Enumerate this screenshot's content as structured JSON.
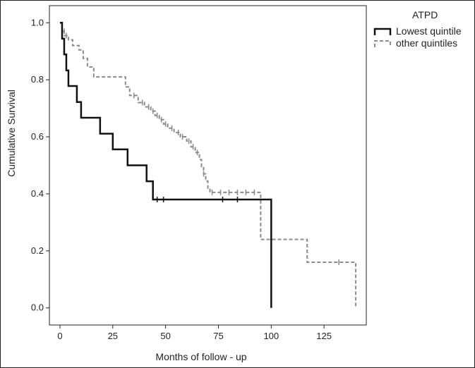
{
  "chart_data": {
    "type": "line",
    "subtype": "kaplan-meier step plot",
    "xlabel": "Months of follow - up",
    "ylabel": "Cumulative Survival",
    "xlim": [
      -5,
      145
    ],
    "ylim": [
      -0.06,
      1.06
    ],
    "x_ticks": [
      0,
      25,
      50,
      75,
      100,
      125
    ],
    "y_ticks": [
      0.0,
      0.2,
      0.4,
      0.6,
      0.8,
      1.0
    ],
    "y_tick_labels": [
      "0.0",
      "0.2",
      "0.4",
      "0.6",
      "0.8",
      "1.0"
    ],
    "grid": false,
    "legend": {
      "title": "ATPD",
      "position": "outside-top-right",
      "entries": [
        "Lowest quintile",
        "other quintiles"
      ]
    },
    "series": [
      {
        "name": "Lowest quintile",
        "color": "#111111",
        "style": "solid",
        "steps": [
          [
            0,
            1.0
          ],
          [
            1,
            0.944
          ],
          [
            2,
            0.889
          ],
          [
            3,
            0.833
          ],
          [
            4,
            0.778
          ],
          [
            8,
            0.722
          ],
          [
            10,
            0.667
          ],
          [
            19,
            0.611
          ],
          [
            25,
            0.556
          ],
          [
            32,
            0.5
          ],
          [
            41,
            0.444
          ],
          [
            44,
            0.38
          ],
          [
            100,
            0.0
          ]
        ],
        "end_x": 100,
        "censored": [
          [
            46,
            0.38
          ],
          [
            49,
            0.38
          ],
          [
            77,
            0.38
          ],
          [
            84,
            0.38
          ]
        ]
      },
      {
        "name": "other quintiles",
        "color": "#8a8a8a",
        "style": "dashed",
        "steps": [
          [
            0,
            1.0
          ],
          [
            1,
            0.97
          ],
          [
            2,
            0.955
          ],
          [
            4,
            0.94
          ],
          [
            6,
            0.92
          ],
          [
            9,
            0.905
          ],
          [
            11,
            0.875
          ],
          [
            13,
            0.845
          ],
          [
            16,
            0.81
          ],
          [
            31,
            0.775
          ],
          [
            33,
            0.745
          ],
          [
            37,
            0.72
          ],
          [
            40,
            0.705
          ],
          [
            43,
            0.69
          ],
          [
            45,
            0.675
          ],
          [
            47,
            0.66
          ],
          [
            49,
            0.645
          ],
          [
            51,
            0.63
          ],
          [
            54,
            0.615
          ],
          [
            57,
            0.6
          ],
          [
            60,
            0.585
          ],
          [
            62,
            0.565
          ],
          [
            64,
            0.545
          ],
          [
            66,
            0.52
          ],
          [
            67,
            0.495
          ],
          [
            68,
            0.47
          ],
          [
            69,
            0.445
          ],
          [
            70,
            0.42
          ],
          [
            71,
            0.405
          ],
          [
            95,
            0.24
          ],
          [
            117,
            0.16
          ],
          [
            140,
            0.0
          ]
        ],
        "end_x": 140,
        "censored": [
          [
            2,
            0.97
          ],
          [
            3,
            0.955
          ],
          [
            35,
            0.745
          ],
          [
            39,
            0.72
          ],
          [
            42,
            0.705
          ],
          [
            44,
            0.69
          ],
          [
            46,
            0.675
          ],
          [
            48,
            0.66
          ],
          [
            50,
            0.645
          ],
          [
            53,
            0.63
          ],
          [
            56,
            0.615
          ],
          [
            58,
            0.6
          ],
          [
            61,
            0.585
          ],
          [
            63,
            0.565
          ],
          [
            65,
            0.545
          ],
          [
            68,
            0.47
          ],
          [
            72,
            0.405
          ],
          [
            76,
            0.405
          ],
          [
            80,
            0.405
          ],
          [
            84,
            0.405
          ],
          [
            88,
            0.405
          ],
          [
            92,
            0.405
          ],
          [
            132,
            0.16
          ]
        ]
      }
    ]
  }
}
